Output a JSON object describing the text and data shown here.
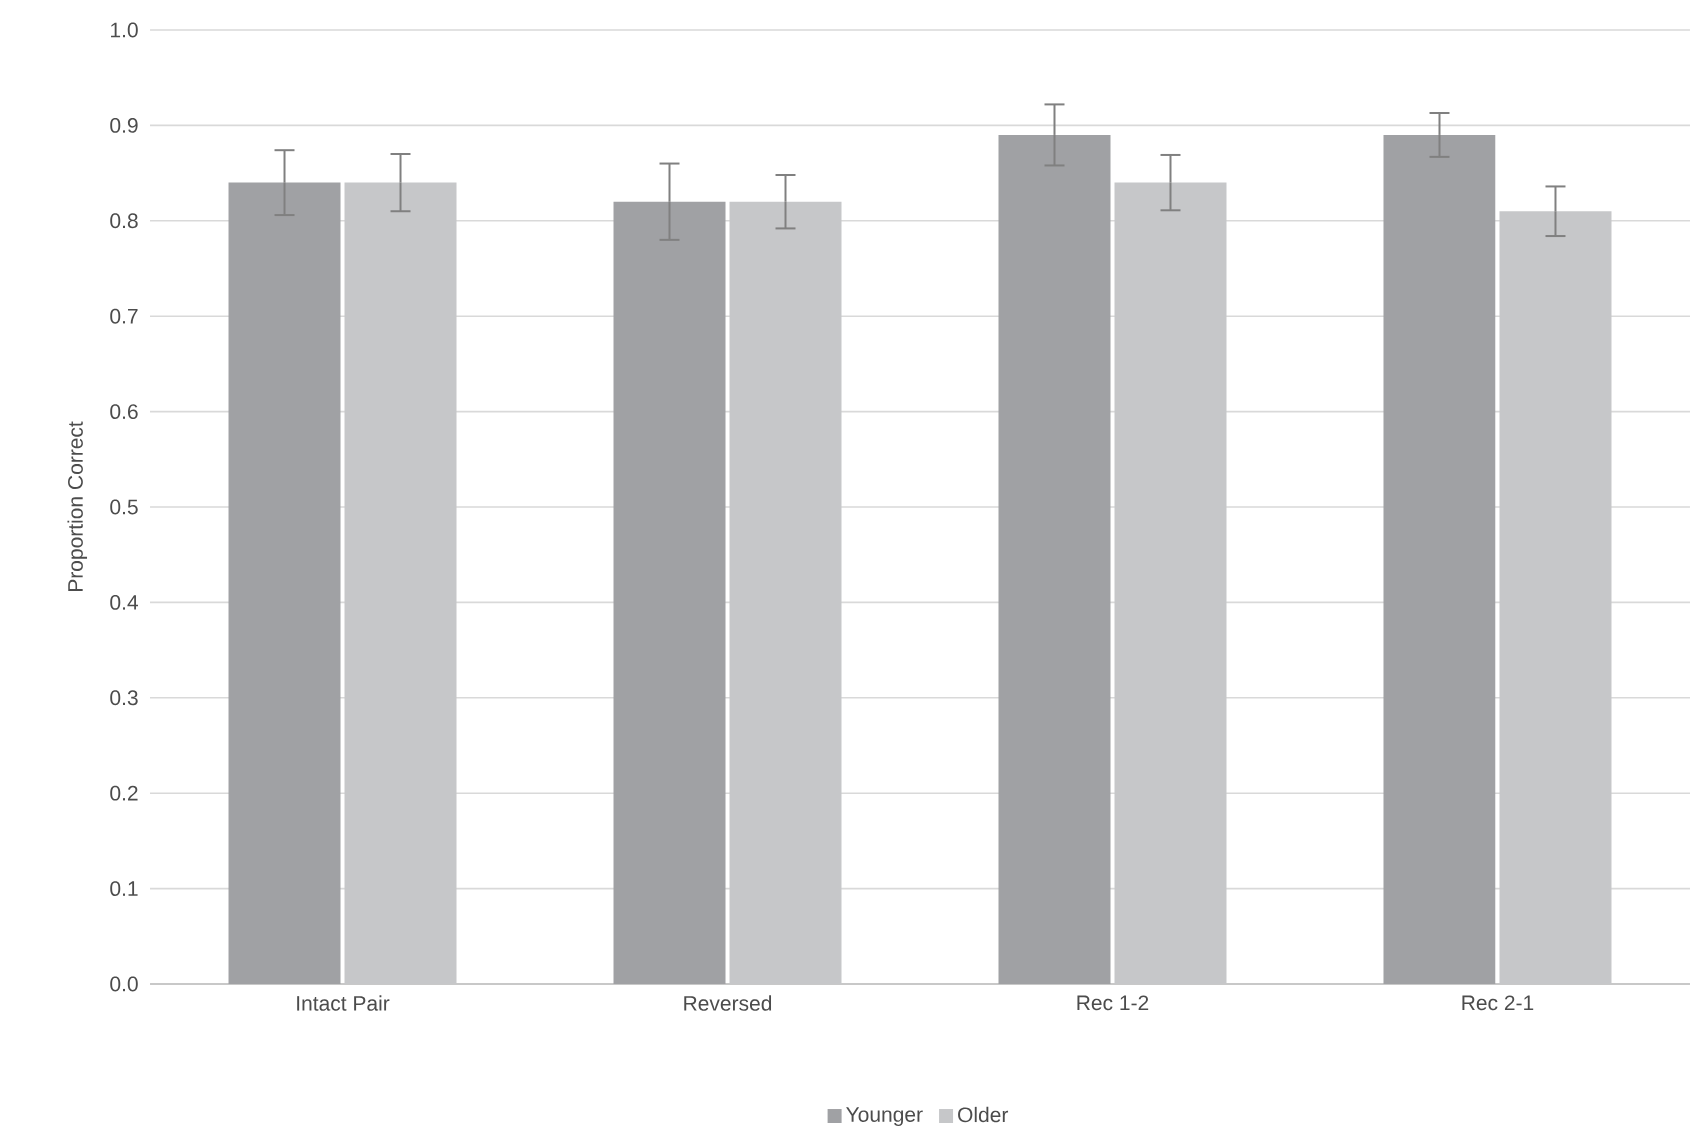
{
  "chart_data": {
    "type": "bar",
    "ylabel": "Proportion Correct",
    "categories": [
      "Intact Pair",
      "Reversed",
      "Rec 1-2",
      "Rec 2-1"
    ],
    "series": [
      {
        "name": "Younger",
        "color": "#a0a1a4",
        "values": [
          0.84,
          0.82,
          0.89,
          0.89
        ],
        "errors": [
          0.034,
          0.04,
          0.032,
          0.023
        ]
      },
      {
        "name": "Older",
        "color": "#c6c7c9",
        "values": [
          0.84,
          0.82,
          0.84,
          0.81
        ],
        "errors": [
          0.03,
          0.028,
          0.029,
          0.026
        ]
      }
    ],
    "ylim": [
      0,
      1
    ],
    "yticks": [
      {
        "value": 0,
        "label": "0.0"
      },
      {
        "value": 0.1,
        "label": "0.1"
      },
      {
        "value": 0.2,
        "label": "0.2"
      },
      {
        "value": 0.3,
        "label": "0.3"
      },
      {
        "value": 0.4,
        "label": "0.4"
      },
      {
        "value": 0.5,
        "label": "0.5"
      },
      {
        "value": 0.6,
        "label": "0.6"
      },
      {
        "value": 0.7,
        "label": "0.7"
      },
      {
        "value": 0.8,
        "label": "0.8"
      },
      {
        "value": 0.9,
        "label": "0.9"
      },
      {
        "value": 1,
        "label": "1.0"
      }
    ],
    "grid": "y",
    "legend": "bottom"
  }
}
